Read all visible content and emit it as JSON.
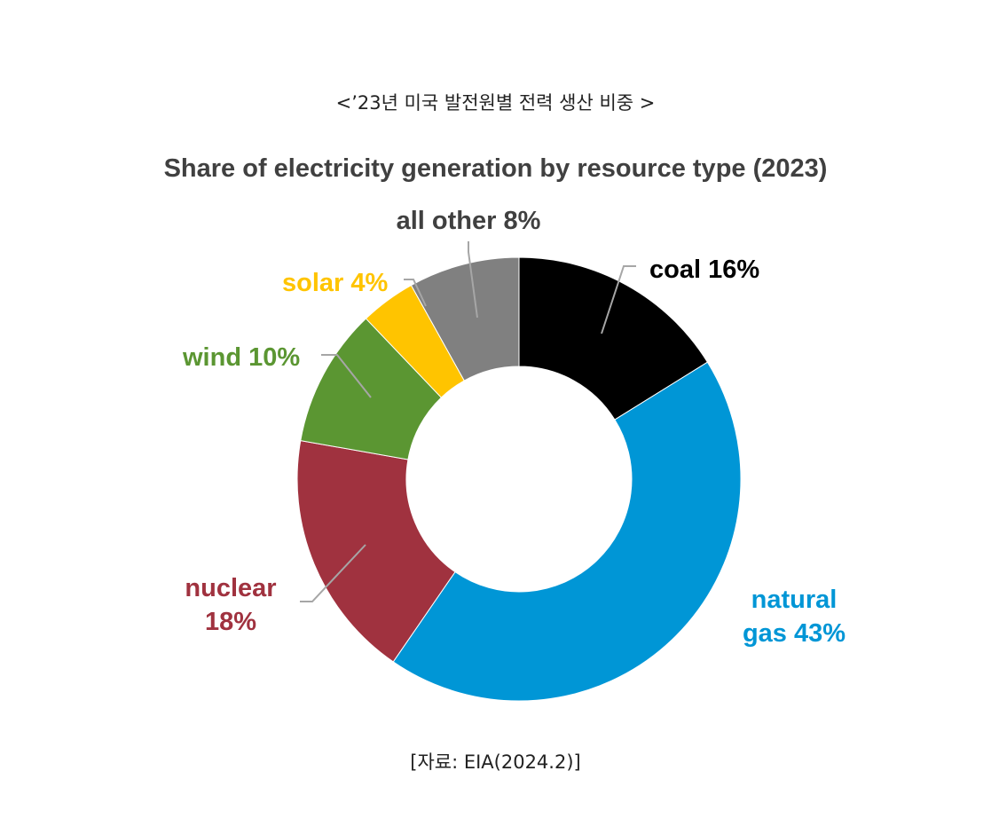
{
  "caption_top": "<’23년 미국 발전원별 전력 생산 비중 >",
  "caption_source": "[자료: EIA(2024.2)]",
  "chart_data": {
    "type": "pie",
    "donut": true,
    "title": "Share of electricity generation by resource type (2023)",
    "slices": [
      {
        "key": "coal",
        "value": 16,
        "color": "#000000",
        "label_lines": [
          "coal 16%"
        ],
        "label_color": "#000000"
      },
      {
        "key": "natural-gas",
        "value": 43,
        "color": "#0096D6",
        "label_lines": [
          "natural",
          "gas 43%"
        ],
        "label_color": "#0096D6"
      },
      {
        "key": "nuclear",
        "value": 18,
        "color": "#A0323F",
        "label_lines": [
          "nuclear",
          "18%"
        ],
        "label_color": "#A0323F"
      },
      {
        "key": "wind",
        "value": 10,
        "color": "#5B9632",
        "label_lines": [
          "wind 10%"
        ],
        "label_color": "#5B9632"
      },
      {
        "key": "solar",
        "value": 4,
        "color": "#FFC400",
        "label_lines": [
          "solar 4%"
        ],
        "label_color": "#FFC400"
      },
      {
        "key": "all-other",
        "value": 8,
        "color": "#808080",
        "label_lines": [
          "all other 8%"
        ],
        "label_color": "#404040"
      }
    ],
    "start_angle_deg": 0,
    "direction": "clockwise",
    "legend": "none"
  }
}
